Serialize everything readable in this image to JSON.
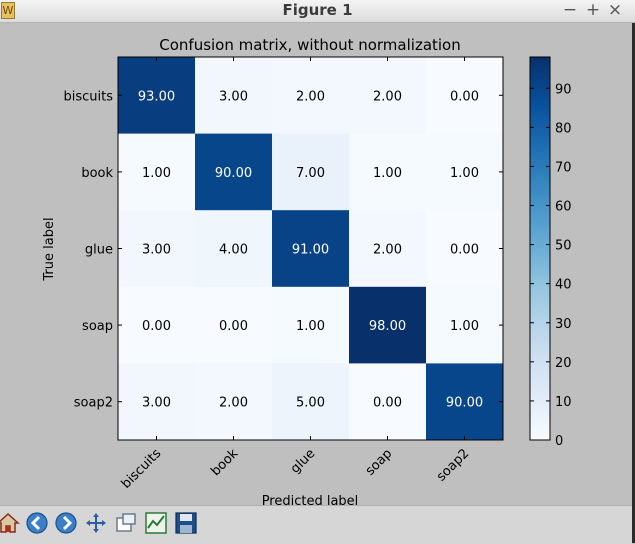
{
  "window": {
    "title": "Figure 1",
    "controls": {
      "minimize": "−",
      "maximize": "+",
      "close": "×"
    }
  },
  "toolbar": {
    "buttons": [
      "home-icon",
      "back-arrow-icon",
      "forward-arrow-icon",
      "pan-move-icon",
      "zoom-rect-icon",
      "subplots-configure-icon",
      "save-floppy-icon"
    ]
  },
  "chart_data": {
    "type": "heatmap",
    "title": "Confusion matrix, without normalization",
    "xlabel": "Predicted label",
    "ylabel": "True label",
    "x_categories": [
      "biscuits",
      "book",
      "glue",
      "soap",
      "soap2"
    ],
    "y_categories": [
      "biscuits",
      "book",
      "glue",
      "soap",
      "soap2"
    ],
    "values": [
      [
        93,
        3,
        2,
        2,
        0
      ],
      [
        1,
        90,
        7,
        1,
        1
      ],
      [
        3,
        4,
        91,
        2,
        0
      ],
      [
        0,
        0,
        1,
        98,
        1
      ],
      [
        3,
        2,
        5,
        0,
        90
      ]
    ],
    "value_labels": [
      [
        "93.00",
        "3.00",
        "2.00",
        "2.00",
        "0.00"
      ],
      [
        "1.00",
        "90.00",
        "7.00",
        "1.00",
        "1.00"
      ],
      [
        "3.00",
        "4.00",
        "91.00",
        "2.00",
        "0.00"
      ],
      [
        "0.00",
        "0.00",
        "1.00",
        "98.00",
        "1.00"
      ],
      [
        "3.00",
        "2.00",
        "5.00",
        "0.00",
        "90.00"
      ]
    ],
    "colormap": "Blues",
    "colorbar": {
      "min": 0,
      "max": 98,
      "ticks": [
        0,
        10,
        20,
        30,
        40,
        50,
        60,
        70,
        80,
        90
      ],
      "tick_labels": [
        "0",
        "10",
        "20",
        "30",
        "40",
        "50",
        "60",
        "70",
        "80",
        "90"
      ]
    },
    "grid": false
  }
}
